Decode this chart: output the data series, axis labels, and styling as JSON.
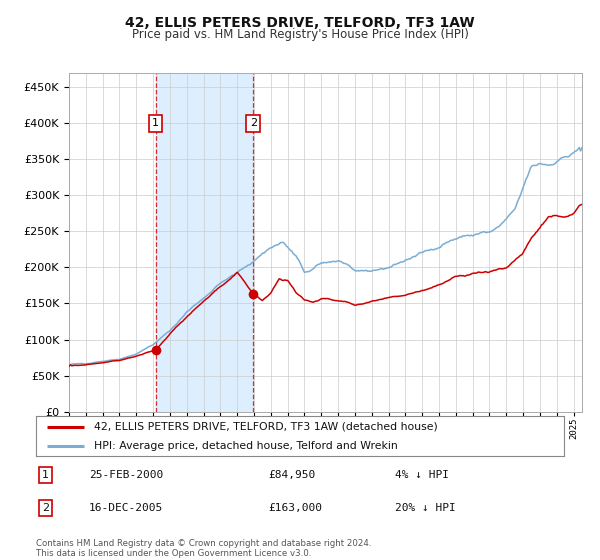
{
  "title": "42, ELLIS PETERS DRIVE, TELFORD, TF3 1AW",
  "subtitle": "Price paid vs. HM Land Registry's House Price Index (HPI)",
  "legend_line1": "42, ELLIS PETERS DRIVE, TELFORD, TF3 1AW (detached house)",
  "legend_line2": "HPI: Average price, detached house, Telford and Wrekin",
  "annotation1_label": "1",
  "annotation1_date": "25-FEB-2000",
  "annotation1_price": "£84,950",
  "annotation1_hpi": "4% ↓ HPI",
  "annotation2_label": "2",
  "annotation2_date": "16-DEC-2005",
  "annotation2_price": "£163,000",
  "annotation2_hpi": "20% ↓ HPI",
  "footer": "Contains HM Land Registry data © Crown copyright and database right 2024.\nThis data is licensed under the Open Government Licence v3.0.",
  "sale1_year": 2000.15,
  "sale1_value": 84950,
  "sale2_year": 2005.96,
  "sale2_value": 163000,
  "hpi_color": "#7aadd4",
  "property_color": "#cc0000",
  "sale_marker_color": "#cc0000",
  "shade_color": "#ddeeff",
  "vline_color": "#cc0000",
  "grid_color": "#cccccc",
  "background_color": "#ffffff",
  "ylim": [
    0,
    470000
  ],
  "xlim_start": 1995.0,
  "xlim_end": 2025.5,
  "hpi_waypoints_x": [
    1995.0,
    1996.0,
    1997.0,
    1998.0,
    1999.0,
    2000.0,
    2001.0,
    2002.0,
    2003.0,
    2004.0,
    2005.0,
    2006.0,
    2007.0,
    2007.7,
    2008.5,
    2009.0,
    2009.5,
    2010.0,
    2010.5,
    2011.0,
    2011.5,
    2012.0,
    2012.5,
    2013.0,
    2013.5,
    2014.0,
    2014.5,
    2015.0,
    2015.5,
    2016.0,
    2016.5,
    2017.0,
    2017.5,
    2018.0,
    2018.5,
    2019.0,
    2019.5,
    2020.0,
    2020.5,
    2021.0,
    2021.5,
    2022.0,
    2022.5,
    2023.0,
    2023.5,
    2024.0,
    2024.5,
    2025.0,
    2025.5
  ],
  "hpi_waypoints_y": [
    65000,
    67000,
    70000,
    73000,
    80000,
    93000,
    112000,
    138000,
    158000,
    178000,
    192000,
    210000,
    228000,
    235000,
    215000,
    193000,
    197000,
    205000,
    208000,
    210000,
    205000,
    195000,
    192000,
    195000,
    198000,
    200000,
    205000,
    210000,
    215000,
    220000,
    225000,
    230000,
    235000,
    240000,
    243000,
    245000,
    248000,
    248000,
    255000,
    265000,
    280000,
    310000,
    340000,
    345000,
    343000,
    348000,
    353000,
    358000,
    365000
  ],
  "prop_waypoints_x": [
    1995.0,
    1996.0,
    1997.0,
    1998.0,
    1999.0,
    2000.15,
    2001.0,
    2002.0,
    2003.0,
    2004.0,
    2005.0,
    2005.96,
    2006.5,
    2007.0,
    2007.5,
    2008.0,
    2008.5,
    2009.0,
    2009.5,
    2010.0,
    2011.0,
    2012.0,
    2013.0,
    2014.0,
    2015.0,
    2016.0,
    2017.0,
    2018.0,
    2019.0,
    2020.0,
    2021.0,
    2022.0,
    2022.5,
    2023.0,
    2023.5,
    2024.0,
    2024.5,
    2025.0,
    2025.5
  ],
  "prop_waypoints_y": [
    63000,
    65000,
    68000,
    71000,
    77000,
    84950,
    108000,
    132000,
    152000,
    172000,
    192000,
    163000,
    155000,
    165000,
    185000,
    182000,
    165000,
    155000,
    152000,
    158000,
    155000,
    148000,
    152000,
    158000,
    162000,
    168000,
    175000,
    185000,
    192000,
    195000,
    200000,
    220000,
    240000,
    255000,
    268000,
    272000,
    270000,
    275000,
    290000
  ]
}
